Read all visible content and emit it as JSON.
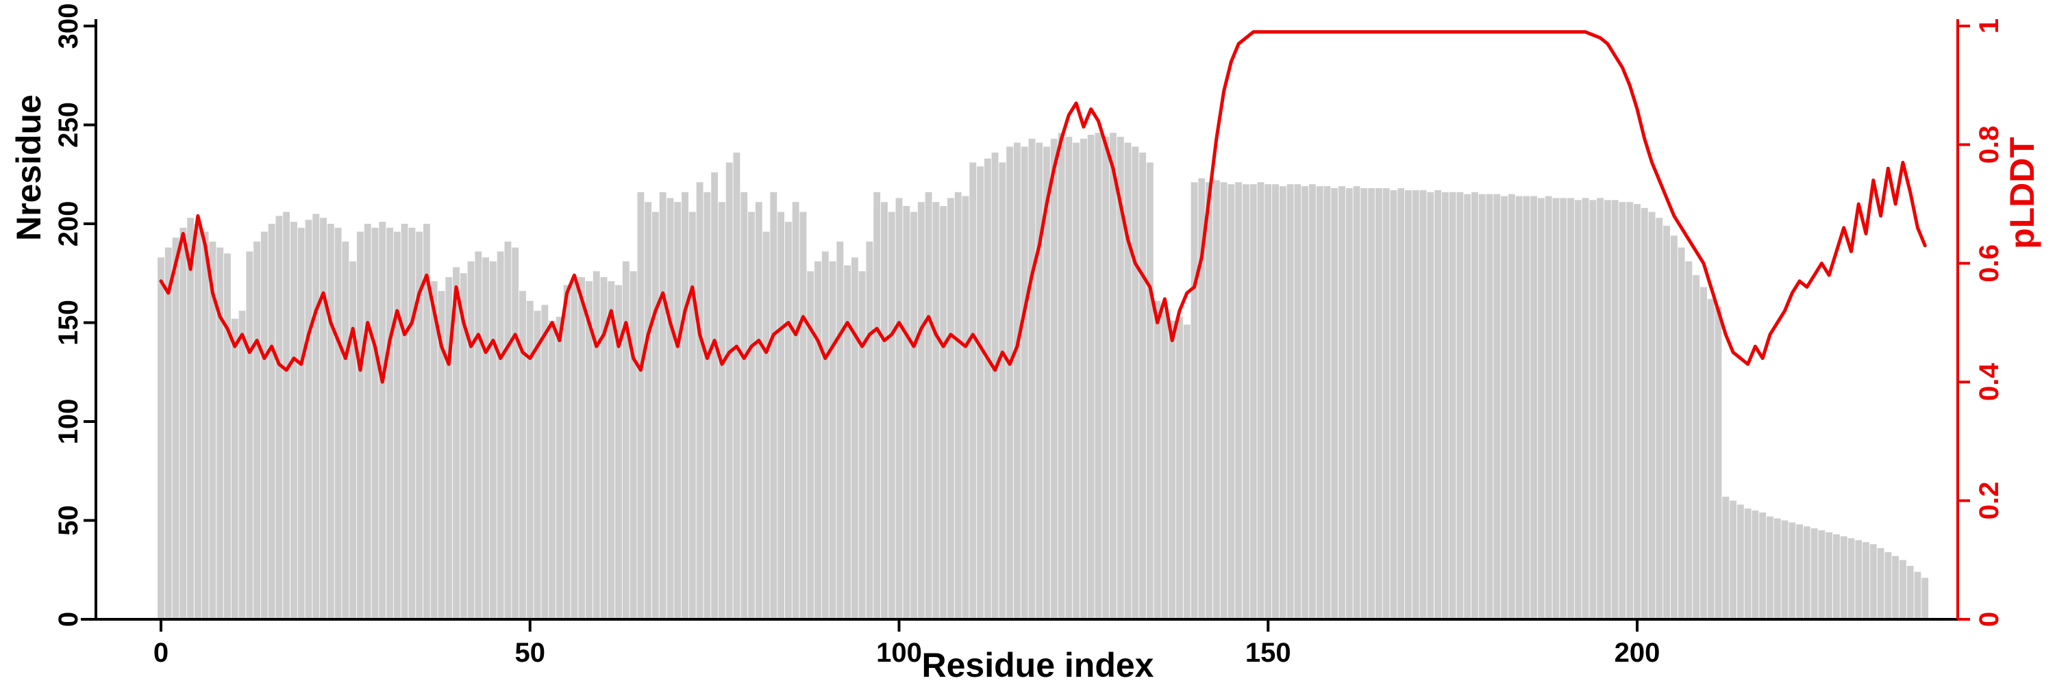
{
  "chart_data": {
    "type": "bar",
    "title": "",
    "xlabel": "Residue index",
    "ylabel": "Nresidue",
    "y2label": "pLDDT",
    "x_ticks": [
      0,
      50,
      100,
      150,
      200
    ],
    "y_ticks": [
      0,
      50,
      100,
      150,
      200,
      250,
      300
    ],
    "y2_ticks": [
      0,
      0.2,
      0.4,
      0.6,
      0.8,
      1
    ],
    "y_max": 300,
    "y2_max": 1,
    "x_range": [
      0,
      239
    ],
    "grid": false,
    "legend": "none",
    "colors": {
      "bars": "#cdcdcd",
      "line": "#ec0000",
      "axis": "#000000"
    },
    "series": [
      {
        "name": "Nresidue",
        "type": "bar",
        "axis": "left",
        "values": [
          183,
          188,
          193,
          198,
          203,
          200,
          196,
          191,
          188,
          185,
          152,
          156,
          186,
          191,
          196,
          200,
          204,
          206,
          201,
          198,
          202,
          205,
          203,
          200,
          198,
          191,
          181,
          196,
          200,
          198,
          201,
          198,
          196,
          200,
          198,
          196,
          200,
          171,
          166,
          173,
          178,
          175,
          181,
          186,
          183,
          181,
          186,
          191,
          188,
          166,
          161,
          156,
          159,
          151,
          153,
          169,
          171,
          173,
          171,
          176,
          173,
          171,
          169,
          181,
          176,
          216,
          211,
          206,
          216,
          213,
          211,
          216,
          206,
          221,
          216,
          226,
          211,
          231,
          236,
          216,
          206,
          211,
          196,
          216,
          206,
          201,
          211,
          206,
          176,
          181,
          186,
          181,
          191,
          179,
          183,
          176,
          191,
          216,
          211,
          206,
          213,
          209,
          206,
          211,
          216,
          211,
          209,
          213,
          216,
          214,
          231,
          229,
          233,
          236,
          231,
          239,
          241,
          239,
          243,
          241,
          239,
          243,
          246,
          244,
          241,
          243,
          245,
          246,
          244,
          246,
          244,
          241,
          239,
          236,
          231,
          161,
          156,
          151,
          153,
          149,
          221,
          223,
          221,
          222,
          221,
          220,
          221,
          220,
          220,
          221,
          220,
          220,
          219,
          220,
          220,
          219,
          220,
          219,
          219,
          218,
          219,
          218,
          219,
          218,
          218,
          218,
          218,
          217,
          218,
          217,
          217,
          217,
          216,
          217,
          216,
          216,
          216,
          215,
          216,
          215,
          215,
          215,
          214,
          215,
          214,
          214,
          214,
          213,
          214,
          213,
          213,
          213,
          212,
          213,
          212,
          213,
          212,
          212,
          211,
          211,
          210,
          208,
          206,
          203,
          199,
          194,
          188,
          181,
          174,
          168,
          162,
          158,
          62,
          60,
          58,
          56,
          55,
          54,
          52,
          51,
          50,
          49,
          48,
          47,
          46,
          45,
          44,
          43,
          42,
          41,
          40,
          39,
          38,
          36,
          34,
          32,
          30,
          27,
          24,
          21
        ]
      },
      {
        "name": "pLDDT",
        "type": "line",
        "axis": "right",
        "values": [
          0.57,
          0.55,
          0.6,
          0.65,
          0.59,
          0.68,
          0.63,
          0.55,
          0.51,
          0.49,
          0.46,
          0.48,
          0.45,
          0.47,
          0.44,
          0.46,
          0.43,
          0.42,
          0.44,
          0.43,
          0.48,
          0.52,
          0.55,
          0.5,
          0.47,
          0.44,
          0.49,
          0.42,
          0.5,
          0.46,
          0.4,
          0.47,
          0.52,
          0.48,
          0.5,
          0.55,
          0.58,
          0.52,
          0.46,
          0.43,
          0.56,
          0.5,
          0.46,
          0.48,
          0.45,
          0.47,
          0.44,
          0.46,
          0.48,
          0.45,
          0.44,
          0.46,
          0.48,
          0.5,
          0.47,
          0.55,
          0.58,
          0.54,
          0.5,
          0.46,
          0.48,
          0.52,
          0.46,
          0.5,
          0.44,
          0.42,
          0.48,
          0.52,
          0.55,
          0.5,
          0.46,
          0.52,
          0.56,
          0.48,
          0.44,
          0.47,
          0.43,
          0.45,
          0.46,
          0.44,
          0.46,
          0.47,
          0.45,
          0.48,
          0.49,
          0.5,
          0.48,
          0.51,
          0.49,
          0.47,
          0.44,
          0.46,
          0.48,
          0.5,
          0.48,
          0.46,
          0.48,
          0.49,
          0.47,
          0.48,
          0.5,
          0.48,
          0.46,
          0.49,
          0.51,
          0.48,
          0.46,
          0.48,
          0.47,
          0.46,
          0.48,
          0.46,
          0.44,
          0.42,
          0.45,
          0.43,
          0.46,
          0.52,
          0.58,
          0.63,
          0.7,
          0.76,
          0.81,
          0.85,
          0.87,
          0.83,
          0.86,
          0.84,
          0.8,
          0.76,
          0.7,
          0.64,
          0.6,
          0.58,
          0.56,
          0.5,
          0.54,
          0.47,
          0.52,
          0.55,
          0.56,
          0.61,
          0.71,
          0.81,
          0.89,
          0.94,
          0.97,
          0.98,
          0.99,
          0.99,
          0.99,
          0.99,
          0.99,
          0.99,
          0.99,
          0.99,
          0.99,
          0.99,
          0.99,
          0.99,
          0.99,
          0.99,
          0.99,
          0.99,
          0.99,
          0.99,
          0.99,
          0.99,
          0.99,
          0.99,
          0.99,
          0.99,
          0.99,
          0.99,
          0.99,
          0.99,
          0.99,
          0.99,
          0.99,
          0.99,
          0.99,
          0.99,
          0.99,
          0.99,
          0.99,
          0.99,
          0.99,
          0.99,
          0.99,
          0.99,
          0.99,
          0.99,
          0.99,
          0.99,
          0.985,
          0.98,
          0.97,
          0.95,
          0.93,
          0.9,
          0.86,
          0.81,
          0.77,
          0.74,
          0.71,
          0.68,
          0.66,
          0.64,
          0.62,
          0.6,
          0.56,
          0.52,
          0.48,
          0.45,
          0.44,
          0.43,
          0.46,
          0.44,
          0.48,
          0.5,
          0.52,
          0.55,
          0.57,
          0.56,
          0.58,
          0.6,
          0.58,
          0.62,
          0.66,
          0.62,
          0.7,
          0.65,
          0.74,
          0.68,
          0.76,
          0.7,
          0.77,
          0.72,
          0.66,
          0.63
        ]
      }
    ]
  }
}
